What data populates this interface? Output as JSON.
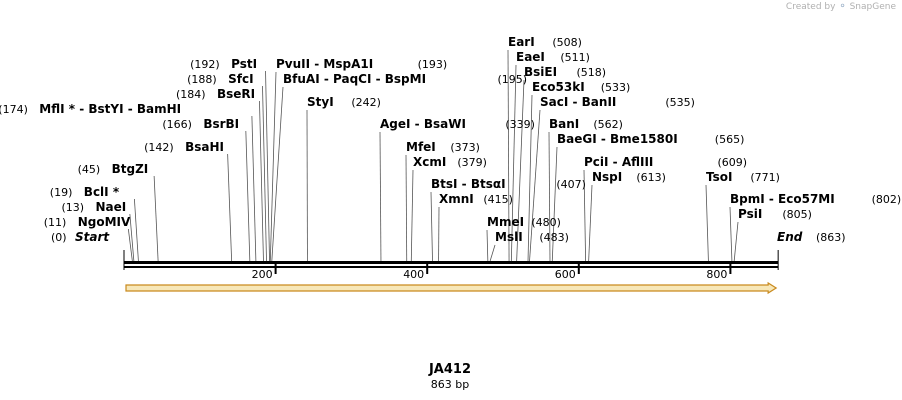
{
  "credit": {
    "text": "Created by",
    "brand": "SnapGene"
  },
  "map": {
    "name": "JA412",
    "length_label": "863 bp",
    "length": 863,
    "ticks": [
      200,
      400,
      600,
      800
    ],
    "start_label": "Start",
    "start_pos": "(0)",
    "end_label": "End",
    "end_pos": "(863)",
    "colors": {
      "feature_fill": "#f7e7b8",
      "feature_edge": "#c98a1e",
      "backbone": "#000000"
    }
  },
  "sites": [
    {
      "names": [
        "NgoMIV"
      ],
      "pos": 11
    },
    {
      "names": [
        "NaeI"
      ],
      "pos": 13
    },
    {
      "names": [
        "BclI *"
      ],
      "pos": 19
    },
    {
      "names": [
        "BtgZI"
      ],
      "pos": 45
    },
    {
      "names": [
        "BsaHI"
      ],
      "pos": 142
    },
    {
      "names": [
        "BsrBI"
      ],
      "pos": 166
    },
    {
      "names": [
        "MflI *",
        "BstYI",
        "BamHI"
      ],
      "pos": 174
    },
    {
      "names": [
        "BseRI"
      ],
      "pos": 184
    },
    {
      "names": [
        "SfcI"
      ],
      "pos": 188
    },
    {
      "names": [
        "PstI"
      ],
      "pos": 192
    },
    {
      "names": [
        "PvuII",
        "MspA1I"
      ],
      "pos": 193
    },
    {
      "names": [
        "BfuAI",
        "PaqCI",
        "BspMI"
      ],
      "pos": 195
    },
    {
      "names": [
        "StyI"
      ],
      "pos": 242
    },
    {
      "names": [
        "AgeI",
        "BsaWI"
      ],
      "pos": 339
    },
    {
      "names": [
        "MfeI"
      ],
      "pos": 373
    },
    {
      "names": [
        "XcmI"
      ],
      "pos": 379
    },
    {
      "names": [
        "BtsI",
        "BtsαI"
      ],
      "pos": 407
    },
    {
      "names": [
        "XmnI"
      ],
      "pos": 415
    },
    {
      "names": [
        "MmeI"
      ],
      "pos": 480
    },
    {
      "names": [
        "MslI"
      ],
      "pos": 483
    },
    {
      "names": [
        "EarI"
      ],
      "pos": 508
    },
    {
      "names": [
        "EaeI"
      ],
      "pos": 511
    },
    {
      "names": [
        "BsiEI"
      ],
      "pos": 518
    },
    {
      "names": [
        "Eco53kI"
      ],
      "pos": 533
    },
    {
      "names": [
        "SacI",
        "BanII"
      ],
      "pos": 535
    },
    {
      "names": [
        "BanI"
      ],
      "pos": 562
    },
    {
      "names": [
        "BaeGI",
        "Bme1580I"
      ],
      "pos": 565
    },
    {
      "names": [
        "PciI",
        "AflIII"
      ],
      "pos": 609
    },
    {
      "names": [
        "NspI"
      ],
      "pos": 613
    },
    {
      "names": [
        "TsoI"
      ],
      "pos": 771
    },
    {
      "names": [
        "BpmI",
        "Eco57MI"
      ],
      "pos": 802
    },
    {
      "names": [
        "PsiI"
      ],
      "pos": 805
    }
  ]
}
